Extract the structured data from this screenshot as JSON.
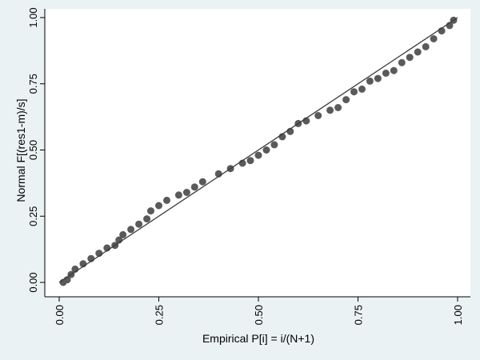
{
  "chart_data": {
    "type": "scatter",
    "title": "",
    "xlabel": "Empirical P[i] = i/(N+1)",
    "ylabel": "Normal F[(res1-m)/s]",
    "xlim": [
      0,
      1
    ],
    "ylim": [
      0,
      1
    ],
    "x_ticks": [
      "0.00",
      "0.25",
      "0.50",
      "0.75",
      "1.00"
    ],
    "y_ticks": [
      "0.00",
      "0.25",
      "0.50",
      "0.75",
      "1.00"
    ],
    "grid": false,
    "legend": "none",
    "reference_line": {
      "x": [
        0,
        1
      ],
      "y": [
        0,
        1
      ]
    },
    "series": [
      {
        "marker_color": "#5a5a5a",
        "x": [
          0.01,
          0.02,
          0.03,
          0.04,
          0.06,
          0.08,
          0.1,
          0.12,
          0.14,
          0.15,
          0.16,
          0.18,
          0.2,
          0.22,
          0.23,
          0.25,
          0.27,
          0.3,
          0.32,
          0.34,
          0.36,
          0.4,
          0.43,
          0.46,
          0.48,
          0.5,
          0.52,
          0.54,
          0.56,
          0.58,
          0.6,
          0.62,
          0.65,
          0.68,
          0.7,
          0.72,
          0.74,
          0.76,
          0.78,
          0.8,
          0.82,
          0.84,
          0.86,
          0.88,
          0.9,
          0.92,
          0.94,
          0.96,
          0.98,
          0.99
        ],
        "y": [
          0.0,
          0.01,
          0.03,
          0.05,
          0.07,
          0.09,
          0.11,
          0.13,
          0.14,
          0.16,
          0.18,
          0.2,
          0.22,
          0.24,
          0.27,
          0.29,
          0.31,
          0.33,
          0.34,
          0.36,
          0.38,
          0.41,
          0.43,
          0.45,
          0.46,
          0.48,
          0.5,
          0.52,
          0.55,
          0.57,
          0.6,
          0.61,
          0.63,
          0.65,
          0.66,
          0.69,
          0.72,
          0.73,
          0.76,
          0.77,
          0.79,
          0.8,
          0.83,
          0.85,
          0.87,
          0.89,
          0.92,
          0.95,
          0.97,
          0.99
        ]
      }
    ]
  }
}
